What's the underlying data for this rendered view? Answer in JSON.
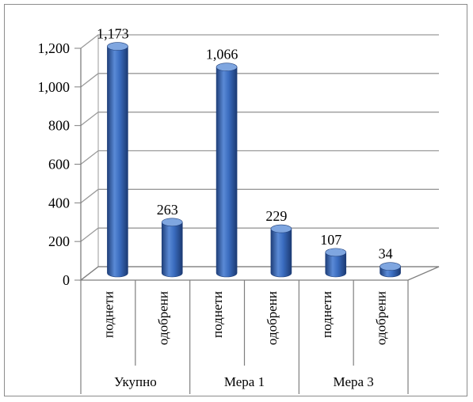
{
  "chart_data": {
    "type": "bar",
    "style": "3d-cylinder",
    "groups": [
      {
        "label": "Укупно",
        "categories": [
          "поднети",
          "одобрени"
        ]
      },
      {
        "label": "Мера 1",
        "categories": [
          "поднети",
          "одобрени"
        ]
      },
      {
        "label": "Мера 3",
        "categories": [
          "поднети",
          "одобрени"
        ]
      }
    ],
    "categories": [
      "поднети",
      "одобрени",
      "поднети",
      "одобрени",
      "поднети",
      "одобрени"
    ],
    "values": [
      1173,
      263,
      1066,
      229,
      107,
      34
    ],
    "value_labels": [
      "1,173",
      "263",
      "1,066",
      "229",
      "107",
      "34"
    ],
    "yticks": [
      "0",
      "200",
      "400",
      "600",
      "800",
      "1,000",
      "1,200"
    ],
    "ylim": [
      0,
      1200
    ],
    "grid": true,
    "legend": "none",
    "colors": {
      "bar": "#3a6cbf",
      "bar_dark": "#1f3f7a",
      "bar_light": "#7fa6e0",
      "grid": "#9a9a9a",
      "axis": "#7f7f7f"
    }
  }
}
